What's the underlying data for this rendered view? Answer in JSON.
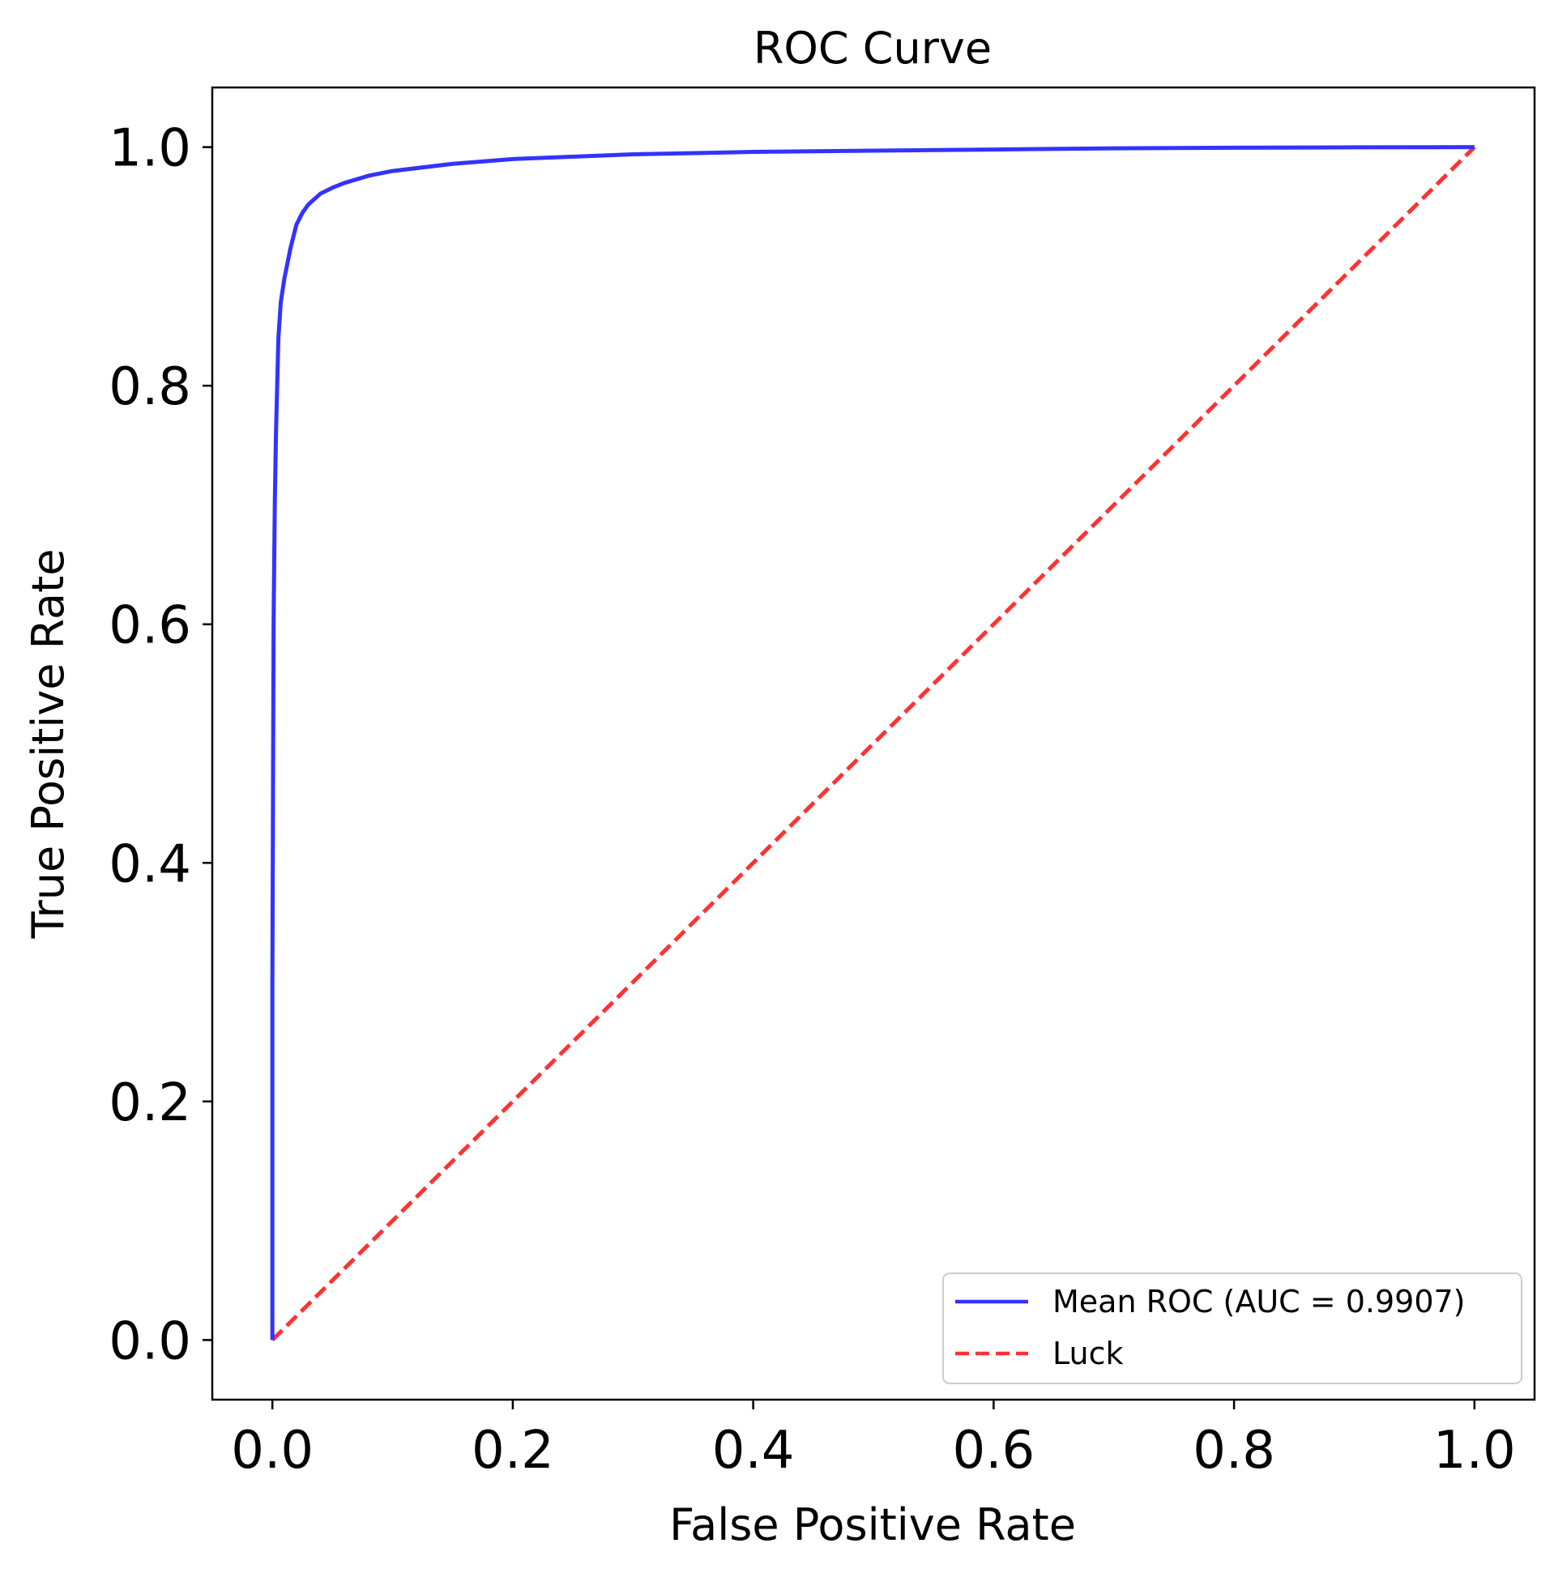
{
  "chart_data": {
    "type": "line",
    "title": "ROC Curve",
    "xlabel": "False Positive Rate",
    "ylabel": "True Positive Rate",
    "xlim": [
      -0.05,
      1.05
    ],
    "ylim": [
      -0.05,
      1.05
    ],
    "xticks": [
      0.0,
      0.2,
      0.4,
      0.6,
      0.8,
      1.0
    ],
    "yticks": [
      0.0,
      0.2,
      0.4,
      0.6,
      0.8,
      1.0
    ],
    "xtick_labels": [
      "0.0",
      "0.2",
      "0.4",
      "0.6",
      "0.8",
      "1.0"
    ],
    "ytick_labels": [
      "0.0",
      "0.2",
      "0.4",
      "0.6",
      "0.8",
      "1.0"
    ],
    "grid": false,
    "legend_position": "lower-right",
    "series": [
      {
        "name": "Mean ROC (AUC = 0.9907)",
        "color": "#3333ff",
        "style": "solid",
        "x": [
          0.0,
          0.0,
          0.001,
          0.002,
          0.003,
          0.004,
          0.005,
          0.007,
          0.01,
          0.015,
          0.02,
          0.025,
          0.03,
          0.04,
          0.05,
          0.06,
          0.08,
          0.1,
          0.15,
          0.2,
          0.3,
          0.4,
          0.5,
          0.6,
          0.7,
          0.8,
          0.9,
          1.0
        ],
        "y": [
          0.0,
          0.3,
          0.6,
          0.7,
          0.76,
          0.8,
          0.84,
          0.87,
          0.89,
          0.915,
          0.935,
          0.945,
          0.952,
          0.961,
          0.966,
          0.97,
          0.976,
          0.98,
          0.986,
          0.99,
          0.994,
          0.996,
          0.997,
          0.998,
          0.999,
          0.9995,
          0.9998,
          1.0
        ]
      },
      {
        "name": "Luck",
        "color": "#ff3333",
        "style": "dashed",
        "x": [
          0.0,
          1.0
        ],
        "y": [
          0.0,
          1.0
        ]
      }
    ]
  }
}
